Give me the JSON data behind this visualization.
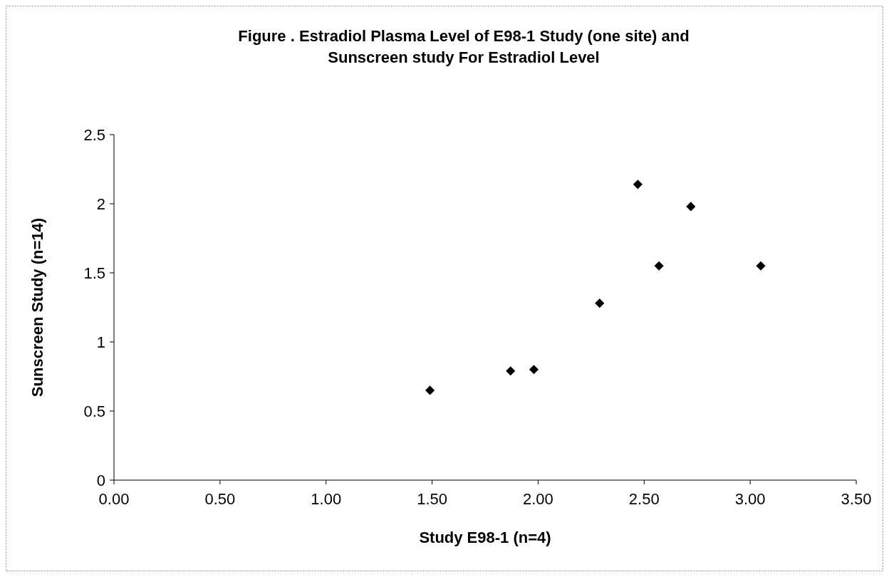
{
  "chart_data": {
    "type": "scatter",
    "title": "Figure . Estradiol Plasma Level of E98-1 Study (one site) and\nSunscreen study For Estradiol Level",
    "xlabel": "Study E98-1 (n=4)",
    "ylabel": "Sunscreen Study (n=14)",
    "x": [
      1.49,
      1.87,
      1.98,
      2.29,
      2.47,
      2.57,
      2.72,
      3.05
    ],
    "values": [
      0.65,
      0.79,
      0.8,
      1.28,
      2.14,
      1.55,
      1.98,
      1.55
    ],
    "color": "#000000",
    "marker": "diamond",
    "xlim": [
      0,
      3.5
    ],
    "xticks": [
      {
        "value": 0,
        "label": "0.00"
      },
      {
        "value": 0.5,
        "label": "0.50"
      },
      {
        "value": 1,
        "label": "1.00"
      },
      {
        "value": 1.5,
        "label": "1.50"
      },
      {
        "value": 2,
        "label": "2.00"
      },
      {
        "value": 2.5,
        "label": "2.50"
      },
      {
        "value": 3,
        "label": "3.00"
      },
      {
        "value": 3.5,
        "label": "3.50"
      }
    ],
    "ylim": [
      0,
      2.5
    ],
    "yticks": [
      0,
      0.5,
      1,
      1.5,
      2,
      2.5
    ]
  }
}
